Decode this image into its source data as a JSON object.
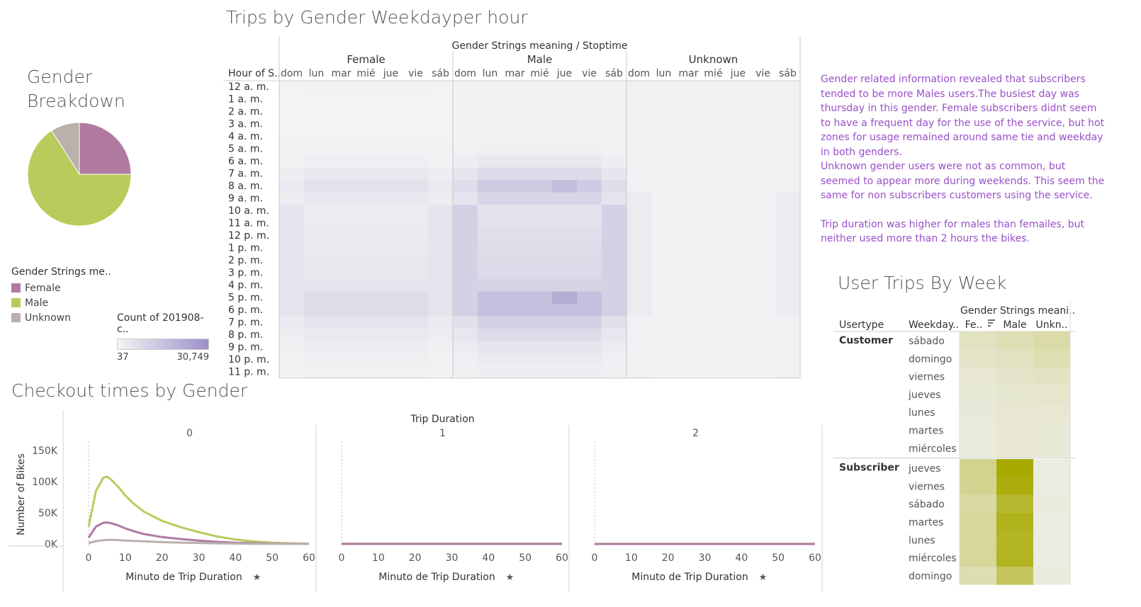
{
  "dashboard": {
    "colors": {
      "female": "#b07aa1",
      "male": "#b9cb5b",
      "unknown": "#bab0ac",
      "purple_scale_low": "#f1f1f1",
      "purple_scale_high": "#8f80c0",
      "olive_scale_low": "#efefe8",
      "olive_scale_high": "#a8aa00",
      "notes_text": "#9a4fc9"
    }
  },
  "gender_breakdown": {
    "title_line1": "Gender",
    "title_line2": "Breakdown",
    "legend_title": "Gender Strings me..",
    "legend": [
      {
        "label": "Female",
        "color": "#b07aa1"
      },
      {
        "label": "Male",
        "color": "#b9cb5b"
      },
      {
        "label": "Unknown",
        "color": "#bab0ac"
      }
    ],
    "count_legend": {
      "title": "Count of 201908-c..",
      "min": "37",
      "max": "30,749"
    }
  },
  "heatmap": {
    "title": "Trips by Gender Weekdayper hour",
    "header": "Gender Strings meaning  /  Stoptime",
    "row_header": "Hour of S..",
    "hours": [
      "12 a. m.",
      "1 a. m.",
      "2 a. m.",
      "3 a. m.",
      "4 a. m.",
      "5 a. m.",
      "6 a. m.",
      "7 a. m.",
      "8 a. m.",
      "9 a. m.",
      "10 a. m.",
      "11 a. m.",
      "12 p. m.",
      "1 p. m.",
      "2 p. m.",
      "3 p. m.",
      "4 p. m.",
      "5 p. m.",
      "6 p. m.",
      "7 p. m.",
      "8 p. m.",
      "9 p. m.",
      "10 p. m.",
      "11 p. m."
    ],
    "days": [
      "dom",
      "lun",
      "mar",
      "mié",
      "jue",
      "vie",
      "sáb"
    ],
    "groups": [
      "Female",
      "Male",
      "Unknown"
    ]
  },
  "notes": {
    "paragraphs": [
      "Gender related information revealed that subscribers tended to be more Males users.The busiest day was thursday in this gender. Female subscribers didnt seem to have a frequent day for the use of the service, but hot zones for usage remained around same tie and weekday in both genders.",
      "Unknown gender users were not as common, but seemed to appear more during weekends. This seem the same for non subscribers customers using the service.",
      "",
      "Trip duration was higher for males than femailes, but neither used more than 2 hours the bikes."
    ]
  },
  "user_trips": {
    "title": "User Trips By Week",
    "header": "Gender Strings meani..",
    "col_usertype": "Usertype",
    "col_weekday": "Weekday..",
    "gender_cols": [
      "Fe..",
      "Male",
      "Unkn.."
    ],
    "customer_label": "Customer",
    "subscriber_label": "Subscriber",
    "customer_days": [
      "sábado",
      "domingo",
      "viernes",
      "jueves",
      "lunes",
      "martes",
      "miércoles"
    ],
    "subscriber_days": [
      "jueves",
      "viernes",
      "sábado",
      "martes",
      "lunes",
      "miércoles",
      "domingo"
    ]
  },
  "checkout": {
    "title": "Checkout times by Gender",
    "header": "Trip Duration",
    "panels": [
      "0",
      "1",
      "2"
    ],
    "ylabel": "Number of Bikes",
    "xlabel": "Minuto de Trip Duration",
    "yticks": [
      "150K",
      "100K",
      "50K",
      "0K"
    ],
    "xticks": [
      "0",
      "10",
      "20",
      "30",
      "40",
      "50",
      "60"
    ]
  },
  "chart_data": [
    {
      "type": "pie",
      "title": "Gender Breakdown",
      "categories": [
        "Female",
        "Male",
        "Unknown"
      ],
      "values": [
        25,
        66,
        9
      ]
    },
    {
      "type": "heatmap",
      "title": "Trips by Gender Weekdayper hour",
      "x_groups": [
        "Female",
        "Male",
        "Unknown"
      ],
      "x": [
        "dom",
        "lun",
        "mar",
        "mié",
        "jue",
        "vie",
        "sáb"
      ],
      "y": [
        "12 a. m.",
        "1 a. m.",
        "2 a. m.",
        "3 a. m.",
        "4 a. m.",
        "5 a. m.",
        "6 a. m.",
        "7 a. m.",
        "8 a. m.",
        "9 a. m.",
        "10 a. m.",
        "11 a. m.",
        "12 p. m.",
        "1 p. m.",
        "2 p. m.",
        "3 p. m.",
        "4 p. m.",
        "5 p. m.",
        "6 p. m.",
        "7 p. m.",
        "8 p. m.",
        "9 p. m.",
        "10 p. m.",
        "11 p. m."
      ],
      "value_range": [
        37,
        30749
      ],
      "hour_profile": [
        0.02,
        0.01,
        0.01,
        0.01,
        0.01,
        0.03,
        0.1,
        0.22,
        0.35,
        0.25,
        0.15,
        0.16,
        0.18,
        0.2,
        0.21,
        0.22,
        0.28,
        0.45,
        0.45,
        0.3,
        0.2,
        0.12,
        0.08,
        0.05
      ],
      "day_weight_weekday": 1.0,
      "day_weight_weekend": 0.55,
      "group_scale": {
        "Female": 0.45,
        "Male": 1.0,
        "Unknown": 0.08
      }
    },
    {
      "type": "table",
      "title": "User Trips By Week",
      "columns": [
        "Fe..",
        "Male",
        "Unkn.."
      ],
      "rows": [
        {
          "usertype": "Customer",
          "day": "sábado",
          "values": [
            0.18,
            0.22,
            0.28
          ]
        },
        {
          "usertype": "Customer",
          "day": "domingo",
          "values": [
            0.14,
            0.18,
            0.24
          ]
        },
        {
          "usertype": "Customer",
          "day": "viernes",
          "values": [
            0.09,
            0.13,
            0.16
          ]
        },
        {
          "usertype": "Customer",
          "day": "jueves",
          "values": [
            0.08,
            0.11,
            0.12
          ]
        },
        {
          "usertype": "Customer",
          "day": "lunes",
          "values": [
            0.07,
            0.1,
            0.1
          ]
        },
        {
          "usertype": "Customer",
          "day": "martes",
          "values": [
            0.06,
            0.09,
            0.08
          ]
        },
        {
          "usertype": "Customer",
          "day": "miércoles",
          "values": [
            0.06,
            0.09,
            0.08
          ]
        },
        {
          "usertype": "Subscriber",
          "day": "jueves",
          "values": [
            0.4,
            1.0,
            0.04
          ]
        },
        {
          "usertype": "Subscriber",
          "day": "viernes",
          "values": [
            0.38,
            0.94,
            0.04
          ]
        },
        {
          "usertype": "Subscriber",
          "day": "sábado",
          "values": [
            0.3,
            0.78,
            0.05
          ]
        },
        {
          "usertype": "Subscriber",
          "day": "martes",
          "values": [
            0.34,
            0.88,
            0.04
          ]
        },
        {
          "usertype": "Subscriber",
          "day": "lunes",
          "values": [
            0.33,
            0.84,
            0.04
          ]
        },
        {
          "usertype": "Subscriber",
          "day": "miércoles",
          "values": [
            0.34,
            0.86,
            0.04
          ]
        },
        {
          "usertype": "Subscriber",
          "day": "domingo",
          "values": [
            0.24,
            0.6,
            0.05
          ]
        }
      ]
    },
    {
      "type": "line",
      "title": "Checkout times by Gender",
      "xlabel": "Minuto de Trip Duration",
      "ylabel": "Number of Bikes",
      "ylim": [
        0,
        150000
      ],
      "xlim": [
        0,
        60
      ],
      "panels": [
        "0",
        "1",
        "2"
      ],
      "x": [
        0,
        2,
        4,
        5,
        6,
        8,
        10,
        12,
        15,
        20,
        25,
        30,
        35,
        40,
        45,
        50,
        55,
        60
      ],
      "series": [
        {
          "name": "Male",
          "panel": "0",
          "values": [
            28000,
            85000,
            106000,
            108000,
            104000,
            92000,
            78000,
            66000,
            52000,
            37000,
            27000,
            19000,
            12000,
            7000,
            4000,
            2000,
            1000,
            500
          ]
        },
        {
          "name": "Female",
          "panel": "0",
          "values": [
            10000,
            28000,
            34000,
            34500,
            33500,
            30000,
            25000,
            21000,
            16000,
            11000,
            8000,
            5500,
            3500,
            2000,
            1200,
            700,
            400,
            200
          ]
        },
        {
          "name": "Unknown",
          "panel": "0",
          "values": [
            1500,
            4500,
            6000,
            6500,
            6500,
            6200,
            5600,
            5000,
            4200,
            3000,
            2200,
            1600,
            1000,
            600,
            350,
            200,
            100,
            50
          ]
        },
        {
          "name": "Male",
          "panel": "1",
          "values": [
            300,
            300,
            300,
            300,
            300,
            300,
            300,
            300,
            300,
            300,
            300,
            300,
            300,
            300,
            300,
            300,
            300,
            300
          ]
        },
        {
          "name": "Female",
          "panel": "1",
          "values": [
            100,
            100,
            100,
            100,
            100,
            100,
            100,
            100,
            100,
            100,
            100,
            100,
            100,
            100,
            100,
            100,
            100,
            100
          ]
        },
        {
          "name": "Male",
          "panel": "2",
          "values": [
            100,
            100,
            100,
            100,
            100,
            100,
            100,
            100,
            100,
            100,
            100,
            100,
            100,
            100,
            100,
            100,
            100,
            100
          ]
        },
        {
          "name": "Female",
          "panel": "2",
          "values": [
            50,
            50,
            50,
            50,
            50,
            50,
            50,
            50,
            50,
            50,
            50,
            50,
            50,
            50,
            50,
            50,
            50,
            50
          ]
        }
      ]
    }
  ]
}
